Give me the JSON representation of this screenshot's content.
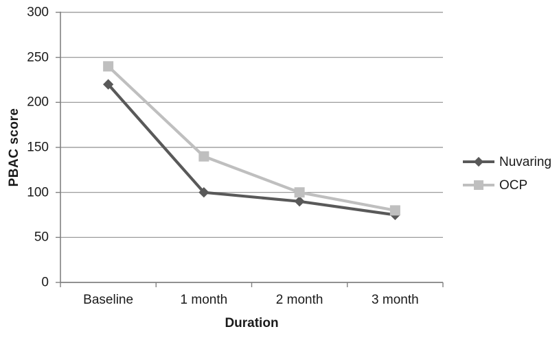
{
  "chart_data": {
    "type": "line",
    "title": "",
    "categories": [
      "Baseline",
      "1 month",
      "2 month",
      "3 month"
    ],
    "series": [
      {
        "name": "Nuvaring",
        "values": [
          220,
          100,
          90,
          75
        ],
        "color": "#595959",
        "marker": "diamond"
      },
      {
        "name": "OCP",
        "values": [
          240,
          140,
          100,
          80
        ],
        "color": "#bfbfbf",
        "marker": "square"
      }
    ],
    "xlabel": "Duration",
    "ylabel": "PBAC score",
    "ylim": [
      0,
      300
    ],
    "yticks": [
      0,
      50,
      100,
      150,
      200,
      250,
      300
    ],
    "grid": true,
    "legend_position": "right"
  },
  "colors": {
    "background": "#ffffff",
    "gridline": "#8f8f8f",
    "axis": "#808080",
    "text": "#1a1a1a"
  }
}
